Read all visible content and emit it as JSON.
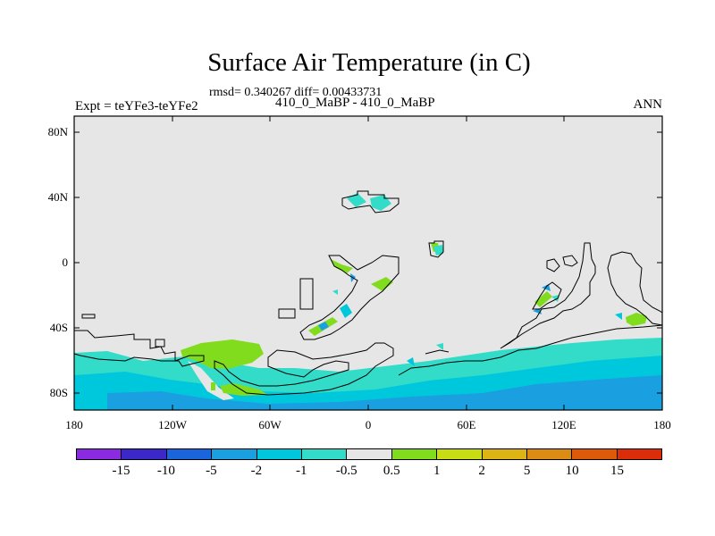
{
  "header": {
    "title": "Surface Air Temperature (in C)",
    "stats": "rmsd= 0.340267 diff= 0.00433731",
    "experiment": "Expt = teYFe3-teYFe2",
    "period": "410_0_MaBP - 410_0_MaBP",
    "season": "ANN"
  },
  "axes": {
    "y_ticks": [
      "80N",
      "40N",
      "0",
      "40S",
      "80S"
    ],
    "x_ticks": [
      "180",
      "120W",
      "60W",
      "0",
      "60E",
      "120E",
      "180"
    ]
  },
  "colorbar": {
    "colors": [
      "#8a2be2",
      "#3c28c8",
      "#1a64dc",
      "#1a9fe0",
      "#00c8dc",
      "#32dcc8",
      "#e6e6e6",
      "#82dc1e",
      "#c8dc14",
      "#dcb414",
      "#dc8c14",
      "#dc5a0a",
      "#dc2d0a"
    ],
    "labels": [
      "-15",
      "-10",
      "-5",
      "-2",
      "-1",
      "-0.5",
      "0.5",
      "1",
      "2",
      "5",
      "10",
      "15"
    ]
  },
  "colors": {
    "background_field": "#e6e6e6",
    "ocean_anomaly_light": "#32dcc8",
    "ocean_anomaly_mid": "#00c8dc",
    "ocean_anomaly_dark": "#1a9fe0",
    "land_warm_anomaly": "#82dc1e"
  }
}
